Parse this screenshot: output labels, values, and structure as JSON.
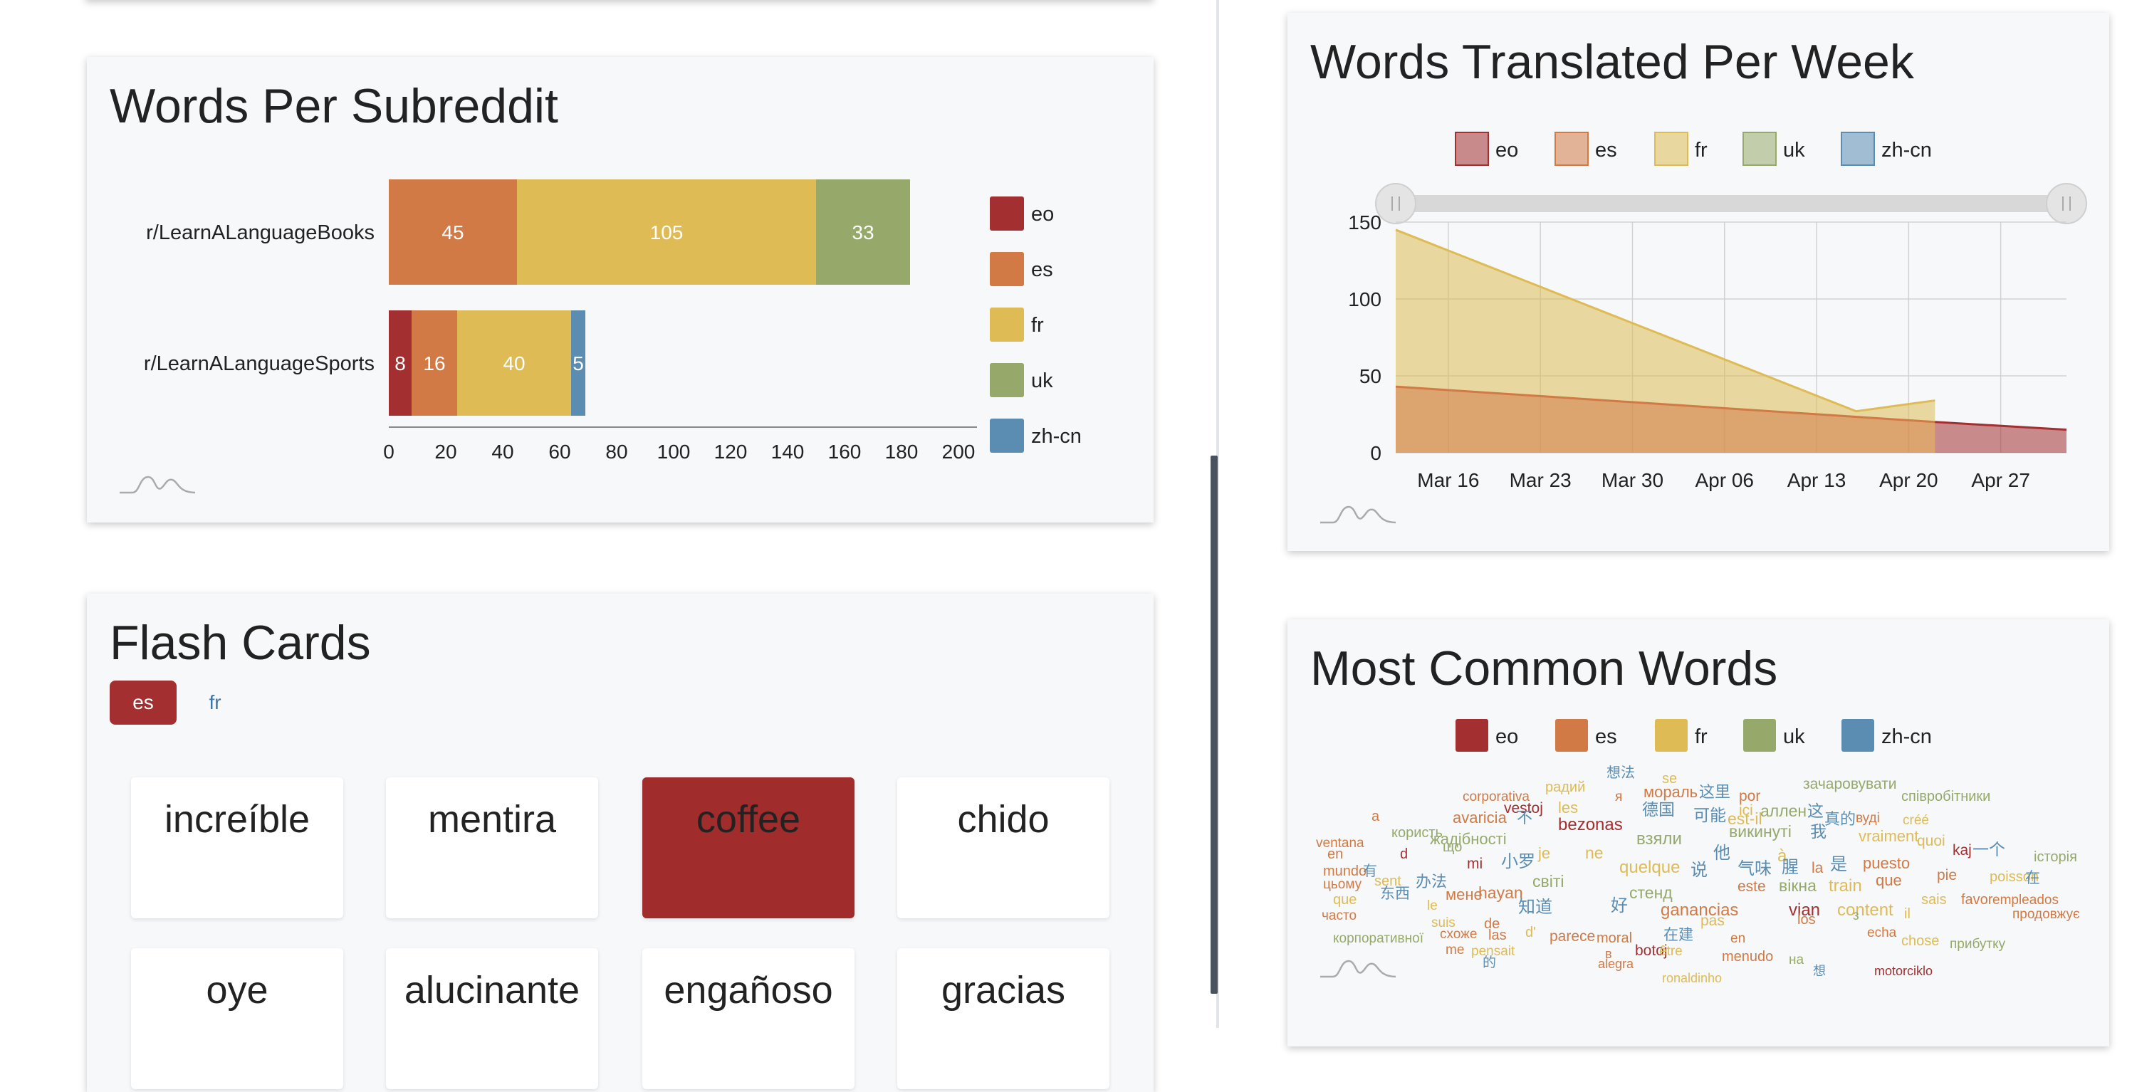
{
  "colors": {
    "eo": "#a32f30",
    "es": "#d17a45",
    "fr": "#dfbb56",
    "uk": "#96a96a",
    "zh-cn": "#5b8db3"
  },
  "languages": [
    "eo",
    "es",
    "fr",
    "uk",
    "zh-cn"
  ],
  "words_per_subreddit": {
    "title": "Words Per Subreddit",
    "chart_data": {
      "type": "bar",
      "orientation": "horizontal",
      "stacked": true,
      "categories": [
        "r/LearnALanguageBooks",
        "r/LearnALanguageSports"
      ],
      "series": [
        {
          "name": "eo",
          "values": [
            0,
            8
          ]
        },
        {
          "name": "es",
          "values": [
            45,
            16
          ]
        },
        {
          "name": "fr",
          "values": [
            105,
            40
          ]
        },
        {
          "name": "uk",
          "values": [
            33,
            0
          ]
        },
        {
          "name": "zh-cn",
          "values": [
            0,
            5
          ]
        }
      ],
      "xlim": [
        0,
        200
      ],
      "xticks": [
        "0",
        "20",
        "40",
        "60",
        "80",
        "100",
        "120",
        "140",
        "160",
        "180",
        "200"
      ],
      "legend": "right"
    }
  },
  "flash_cards": {
    "title": "Flash Cards",
    "tabs": [
      {
        "label": "es",
        "active": true
      },
      {
        "label": "fr",
        "active": false
      }
    ],
    "cards": [
      {
        "word": "increíble",
        "active": false
      },
      {
        "word": "mentira",
        "active": false
      },
      {
        "word": "coffee",
        "active": true
      },
      {
        "word": "chido",
        "active": false
      },
      {
        "word": "oye",
        "active": false
      },
      {
        "word": "alucinante",
        "active": false
      },
      {
        "word": "engañoso",
        "active": false
      },
      {
        "word": "gracias",
        "active": false
      }
    ]
  },
  "words_per_week": {
    "title": "Words Translated Per Week",
    "chart_data": {
      "type": "area",
      "legend": "top",
      "x_tick_labels": [
        "Mar 16",
        "Mar 23",
        "Mar 30",
        "Apr 06",
        "Apr 13",
        "Apr 20",
        "Apr 27"
      ],
      "ylim": [
        0,
        150
      ],
      "yticks": [
        "0",
        "50",
        "100",
        "150"
      ],
      "series": [
        {
          "name": "fr",
          "points": [
            [
              "Mar 12",
              145
            ],
            [
              "Apr 16",
              27
            ],
            [
              "Apr 22",
              34
            ]
          ]
        },
        {
          "name": "es",
          "points": [
            [
              "Mar 12",
              43
            ],
            [
              "Apr 22",
              20
            ]
          ]
        },
        {
          "name": "eo",
          "points": [
            [
              "Apr 22",
              20
            ],
            [
              "May 02",
              15
            ]
          ]
        }
      ],
      "grid": true,
      "range_slider": true
    }
  },
  "most_common_words": {
    "title": "Most Common Words",
    "legend": "top",
    "words": [
      {
        "t": "想法",
        "l": "zh-cn"
      },
      {
        "t": "радий",
        "l": "fr"
      },
      {
        "t": "se",
        "l": "fr"
      },
      {
        "t": "зачаровувати",
        "l": "uk"
      },
      {
        "t": "corporativa",
        "l": "es"
      },
      {
        "t": "я",
        "l": "es"
      },
      {
        "t": "мораль",
        "l": "es"
      },
      {
        "t": "这里",
        "l": "zh-cn"
      },
      {
        "t": "por",
        "l": "es"
      },
      {
        "t": "співробітники",
        "l": "uk"
      },
      {
        "t": "a",
        "l": "es"
      },
      {
        "t": "vestoj",
        "l": "eo"
      },
      {
        "t": "les",
        "l": "fr"
      },
      {
        "t": "德国",
        "l": "zh-cn"
      },
      {
        "t": "可能",
        "l": "zh-cn"
      },
      {
        "t": "ici",
        "l": "fr"
      },
      {
        "t": "аллен",
        "l": "uk"
      },
      {
        "t": "这",
        "l": "zh-cn"
      },
      {
        "t": "вуді",
        "l": "es"
      },
      {
        "t": "avaricia",
        "l": "es"
      },
      {
        "t": "不",
        "l": "zh-cn"
      },
      {
        "t": "bezonas",
        "l": "eo"
      },
      {
        "t": "est-il",
        "l": "fr"
      },
      {
        "t": "真的",
        "l": "zh-cn"
      },
      {
        "t": "créé",
        "l": "fr"
      },
      {
        "t": "ventana",
        "l": "es"
      },
      {
        "t": "користь",
        "l": "uk"
      },
      {
        "t": "жадібності",
        "l": "uk"
      },
      {
        "t": "взяли",
        "l": "uk"
      },
      {
        "t": "викинуті",
        "l": "uk"
      },
      {
        "t": "我",
        "l": "zh-cn"
      },
      {
        "t": "vraiment",
        "l": "fr"
      },
      {
        "t": "quoi",
        "l": "fr"
      },
      {
        "t": "en",
        "l": "es"
      },
      {
        "t": "d",
        "l": "eo"
      },
      {
        "t": "що",
        "l": "uk"
      },
      {
        "t": "je",
        "l": "fr"
      },
      {
        "t": "ne",
        "l": "fr"
      },
      {
        "t": "他",
        "l": "zh-cn"
      },
      {
        "t": "à",
        "l": "fr"
      },
      {
        "t": "kaj",
        "l": "eo"
      },
      {
        "t": "一个",
        "l": "zh-cn"
      },
      {
        "t": "історія",
        "l": "uk"
      },
      {
        "t": "mundo",
        "l": "es"
      },
      {
        "t": "有",
        "l": "zh-cn"
      },
      {
        "t": "mi",
        "l": "eo"
      },
      {
        "t": "小罗",
        "l": "zh-cn"
      },
      {
        "t": "quelque",
        "l": "fr"
      },
      {
        "t": "说",
        "l": "zh-cn"
      },
      {
        "t": "气味",
        "l": "zh-cn"
      },
      {
        "t": "腥",
        "l": "zh-cn"
      },
      {
        "t": "la",
        "l": "es"
      },
      {
        "t": "是",
        "l": "zh-cn"
      },
      {
        "t": "puesto",
        "l": "es"
      },
      {
        "t": "sent",
        "l": "fr"
      },
      {
        "t": "办法",
        "l": "zh-cn"
      },
      {
        "t": "світі",
        "l": "uk"
      },
      {
        "t": "este",
        "l": "es"
      },
      {
        "t": "вікна",
        "l": "uk"
      },
      {
        "t": "train",
        "l": "fr"
      },
      {
        "t": "que",
        "l": "es"
      },
      {
        "t": "pie",
        "l": "es"
      },
      {
        "t": "poisson",
        "l": "fr"
      },
      {
        "t": "在",
        "l": "zh-cn"
      },
      {
        "t": "цьому",
        "l": "es"
      },
      {
        "t": "东西",
        "l": "zh-cn"
      },
      {
        "t": "мене",
        "l": "es"
      },
      {
        "t": "hayan",
        "l": "es"
      },
      {
        "t": "стенд",
        "l": "uk"
      },
      {
        "t": "sais",
        "l": "fr"
      },
      {
        "t": "favor",
        "l": "es"
      },
      {
        "t": "empleados",
        "l": "es"
      },
      {
        "t": "que",
        "l": "fr"
      },
      {
        "t": "le",
        "l": "fr"
      },
      {
        "t": "知道",
        "l": "zh-cn"
      },
      {
        "t": "好",
        "l": "zh-cn"
      },
      {
        "t": "ganancias",
        "l": "es"
      },
      {
        "t": "vian",
        "l": "eo"
      },
      {
        "t": "content",
        "l": "fr"
      },
      {
        "t": "il",
        "l": "fr"
      },
      {
        "t": "продовжує",
        "l": "es"
      },
      {
        "t": "часто",
        "l": "es"
      },
      {
        "t": "suis",
        "l": "fr"
      },
      {
        "t": "de",
        "l": "es"
      },
      {
        "t": "pas",
        "l": "fr"
      },
      {
        "t": "los",
        "l": "es"
      },
      {
        "t": "з",
        "l": "uk"
      },
      {
        "t": "echa",
        "l": "es"
      },
      {
        "t": "корпоративної",
        "l": "uk"
      },
      {
        "t": "схоже",
        "l": "es"
      },
      {
        "t": "las",
        "l": "es"
      },
      {
        "t": "d'",
        "l": "fr"
      },
      {
        "t": "parece",
        "l": "es"
      },
      {
        "t": "moral",
        "l": "es"
      },
      {
        "t": "在建",
        "l": "zh-cn"
      },
      {
        "t": "en",
        "l": "es"
      },
      {
        "t": "chose",
        "l": "fr"
      },
      {
        "t": "прибутку",
        "l": "uk"
      },
      {
        "t": "me",
        "l": "es"
      },
      {
        "t": "pensait",
        "l": "fr"
      },
      {
        "t": "в",
        "l": "es"
      },
      {
        "t": "botoj",
        "l": "eo"
      },
      {
        "t": "être",
        "l": "fr"
      },
      {
        "t": "menudo",
        "l": "es"
      },
      {
        "t": "на",
        "l": "uk"
      },
      {
        "t": "的",
        "l": "zh-cn"
      },
      {
        "t": "alegra",
        "l": "es"
      },
      {
        "t": "ronaldinho",
        "l": "fr"
      },
      {
        "t": "想",
        "l": "zh-cn"
      },
      {
        "t": "motorciklo",
        "l": "eo"
      }
    ]
  }
}
